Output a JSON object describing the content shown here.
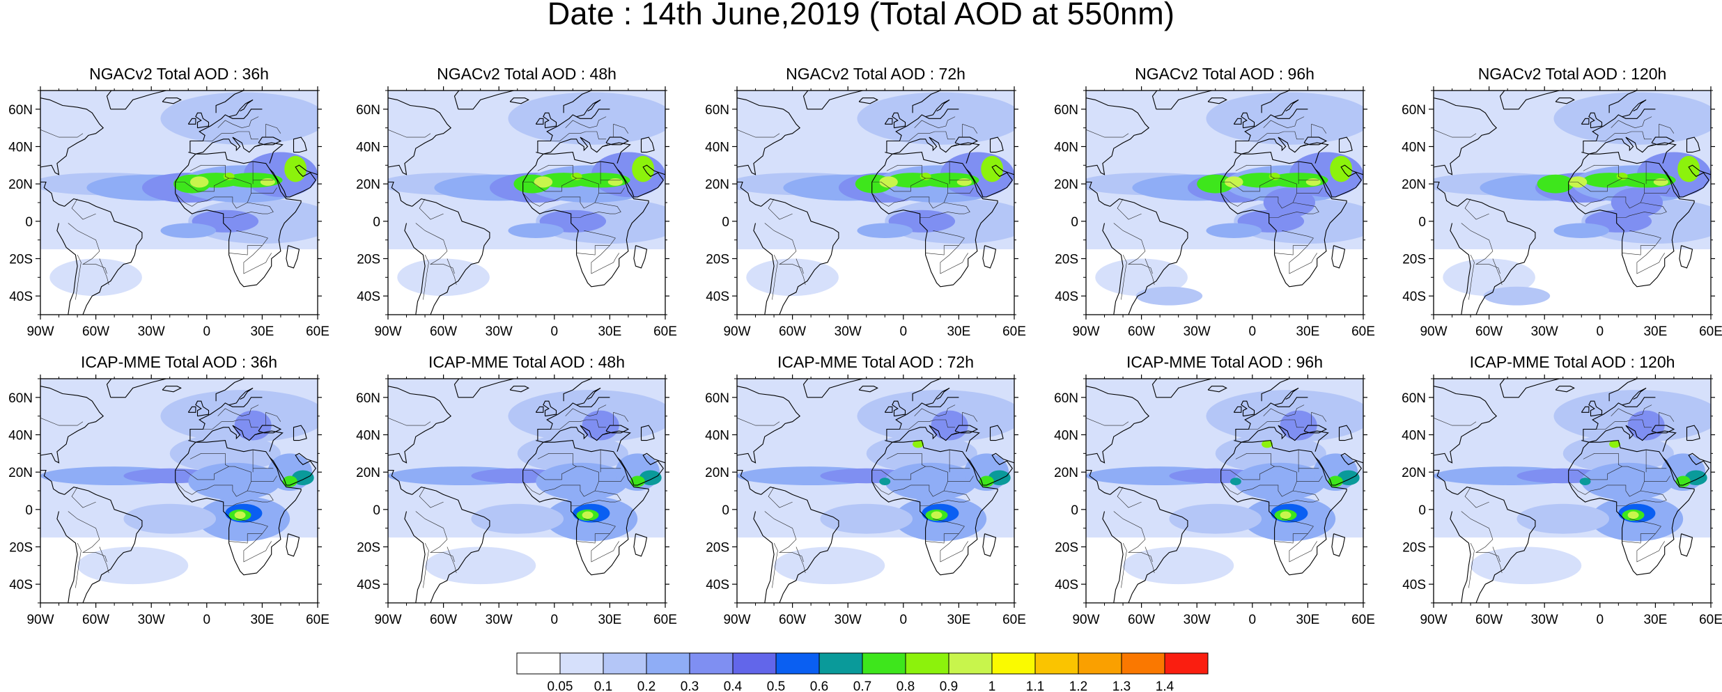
{
  "main_title": "Date : 14th June,2019 (Total AOD at 550nm)",
  "rows": [
    {
      "model": "NGACv2",
      "panels": [
        {
          "title": "NGACv2 Total AOD : 36h"
        },
        {
          "title": "NGACv2 Total AOD : 48h"
        },
        {
          "title": "NGACv2 Total AOD : 72h"
        },
        {
          "title": "NGACv2 Total AOD : 96h"
        },
        {
          "title": "NGACv2 Total AOD : 120h"
        }
      ]
    },
    {
      "model": "ICAP-MME",
      "panels": [
        {
          "title": "ICAP-MME Total AOD : 36h"
        },
        {
          "title": "ICAP-MME Total AOD : 48h"
        },
        {
          "title": "ICAP-MME Total AOD : 72h"
        },
        {
          "title": "ICAP-MME Total AOD : 96h"
        },
        {
          "title": "ICAP-MME Total AOD : 120h"
        }
      ]
    }
  ],
  "map": {
    "lon_ticks": [
      "90W",
      "60W",
      "30W",
      "0",
      "30E",
      "60E"
    ],
    "lat_ticks": [
      "60N",
      "40N",
      "20N",
      "0",
      "20S",
      "40S"
    ]
  },
  "colorbar": {
    "colors": [
      "#ffffff",
      "#d6e0fb",
      "#b4c6f7",
      "#8fadf6",
      "#7f8ff2",
      "#6266ea",
      "#0a5ff2",
      "#0a9a9a",
      "#3ee61c",
      "#8cf20c",
      "#c8f54c",
      "#fafa00",
      "#fac400",
      "#faa000",
      "#fa7800",
      "#fa1e10"
    ],
    "labels": [
      "0.05",
      "0.1",
      "0.2",
      "0.3",
      "0.4",
      "0.5",
      "0.6",
      "0.7",
      "0.8",
      "0.9",
      "1",
      "1.1",
      "1.2",
      "1.3",
      "1.4"
    ]
  }
}
